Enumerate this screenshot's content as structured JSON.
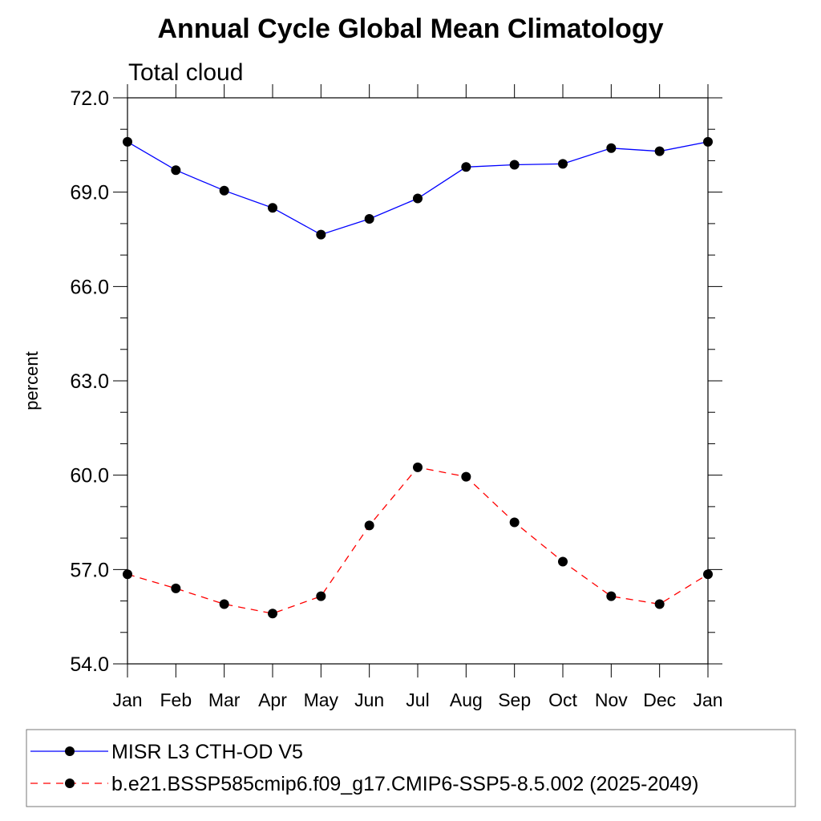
{
  "chart_data": {
    "type": "line",
    "title": "Annual Cycle Global Mean Climatology",
    "subtitle": "Total cloud",
    "xlabel": "",
    "ylabel": "percent",
    "categories": [
      "Jan",
      "Feb",
      "Mar",
      "Apr",
      "May",
      "Jun",
      "Jul",
      "Aug",
      "Sep",
      "Oct",
      "Nov",
      "Dec",
      "Jan"
    ],
    "ylim": [
      54.0,
      72.0
    ],
    "yticks": [
      "54.0",
      "57.0",
      "60.0",
      "63.0",
      "66.0",
      "69.0",
      "72.0"
    ],
    "grid": false,
    "legend_position": "bottom",
    "series": [
      {
        "name": "MISR L3 CTH-OD V5",
        "color": "#0000ff",
        "dash": "solid",
        "marker": "filled-circle",
        "values": [
          70.6,
          69.7,
          69.05,
          68.5,
          67.65,
          68.15,
          68.8,
          69.8,
          69.87,
          69.9,
          70.4,
          70.3,
          70.6
        ]
      },
      {
        "name": "b.e21.BSSP585cmip6.f09_g17.CMIP6-SSP5-8.5.002 (2025-2049)",
        "color": "#ff0000",
        "dash": "dashed",
        "marker": "filled-circle",
        "values": [
          56.85,
          56.4,
          55.9,
          55.6,
          56.15,
          58.4,
          60.25,
          59.95,
          58.5,
          57.25,
          56.15,
          55.9,
          56.85
        ]
      }
    ]
  }
}
